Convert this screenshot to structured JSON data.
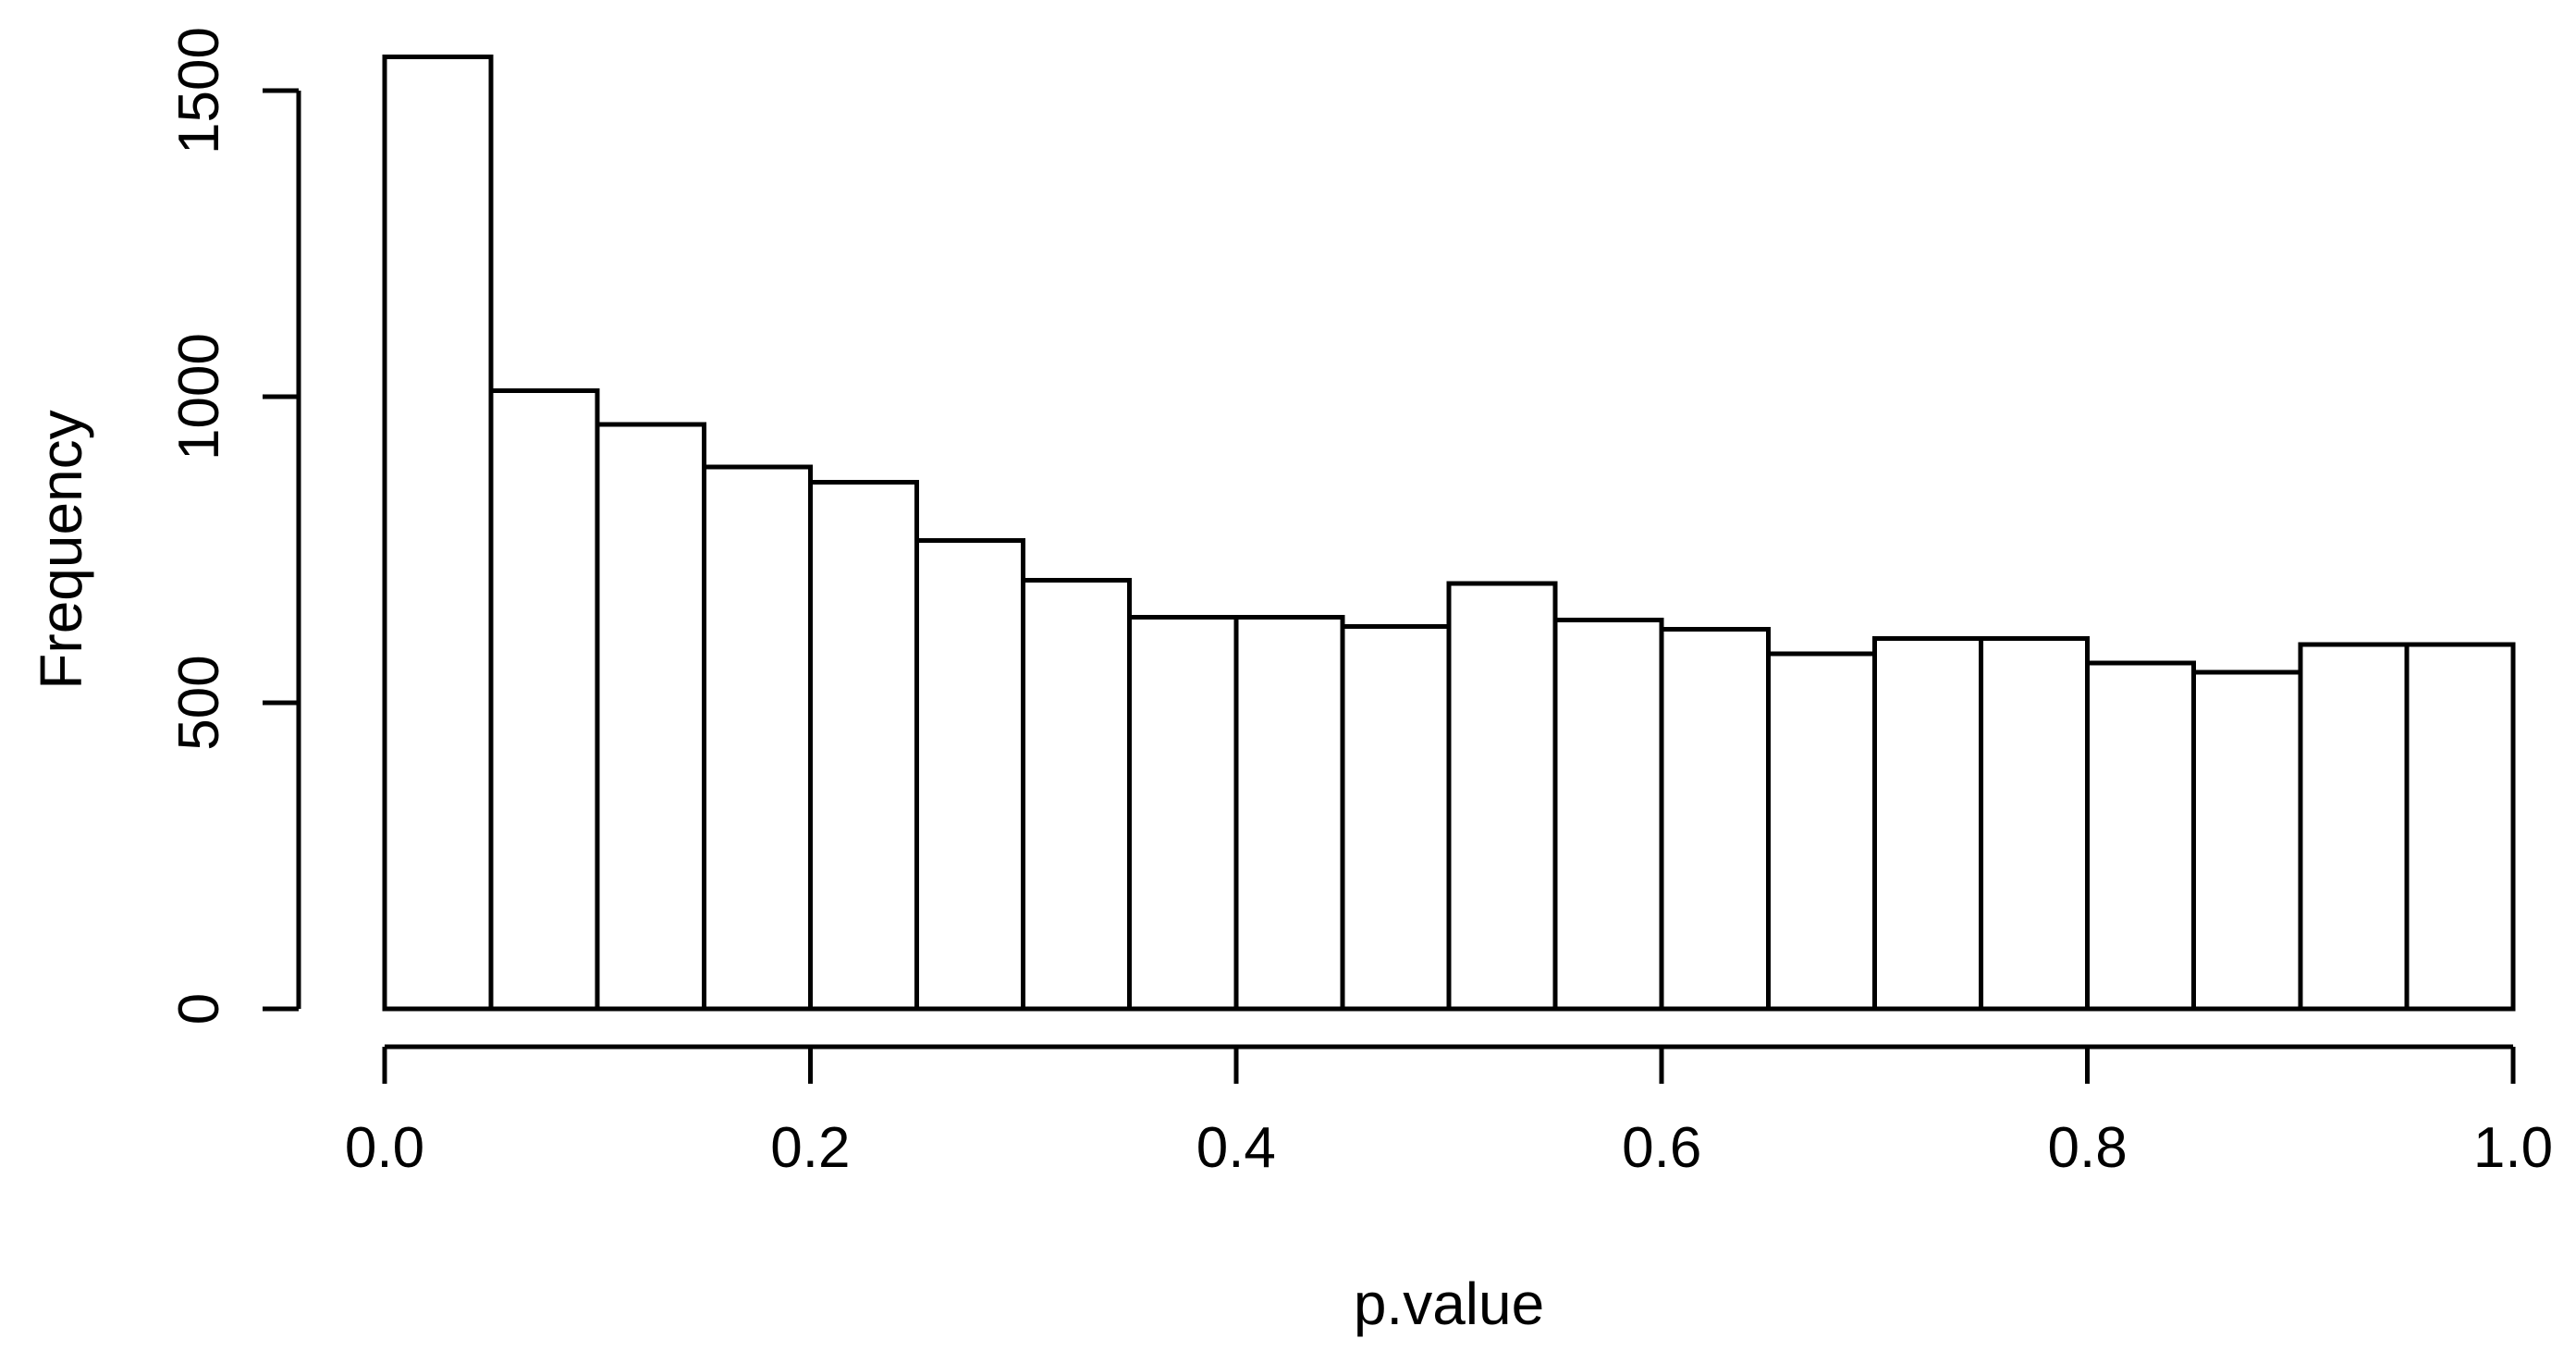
{
  "figure": {
    "background": "#ffffff"
  },
  "chart_data": {
    "type": "bar",
    "subtype": "histogram",
    "title": "",
    "xlabel": "p.value",
    "ylabel": "Frequency",
    "bin_start": 0.0,
    "bin_width": 0.05,
    "bin_edges": [
      0.0,
      0.05,
      0.1,
      0.15,
      0.2,
      0.25,
      0.3,
      0.35,
      0.4,
      0.45,
      0.5,
      0.55,
      0.6,
      0.65,
      0.7,
      0.75,
      0.8,
      0.85,
      0.9,
      0.95,
      1.0
    ],
    "counts": [
      1555,
      1010,
      955,
      885,
      860,
      765,
      700,
      640,
      640,
      625,
      695,
      635,
      620,
      580,
      605,
      605,
      565,
      550,
      595,
      595
    ],
    "x_tick_labels": [
      "0.0",
      "0.2",
      "0.4",
      "0.6",
      "0.8",
      "1.0"
    ],
    "x_tick_values": [
      0.0,
      0.2,
      0.4,
      0.6,
      0.8,
      1.0
    ],
    "y_tick_labels": [
      "0",
      "500",
      "1000",
      "1500"
    ],
    "y_tick_values": [
      0,
      500,
      1000,
      1500
    ],
    "xlim": [
      0.0,
      1.0
    ],
    "ylim": [
      0,
      1500
    ],
    "grid": "off",
    "legend": "none",
    "bar_fill": "#ffffff",
    "bar_stroke": "#000000",
    "axis_color": "#000000",
    "text_color": "#000000"
  }
}
